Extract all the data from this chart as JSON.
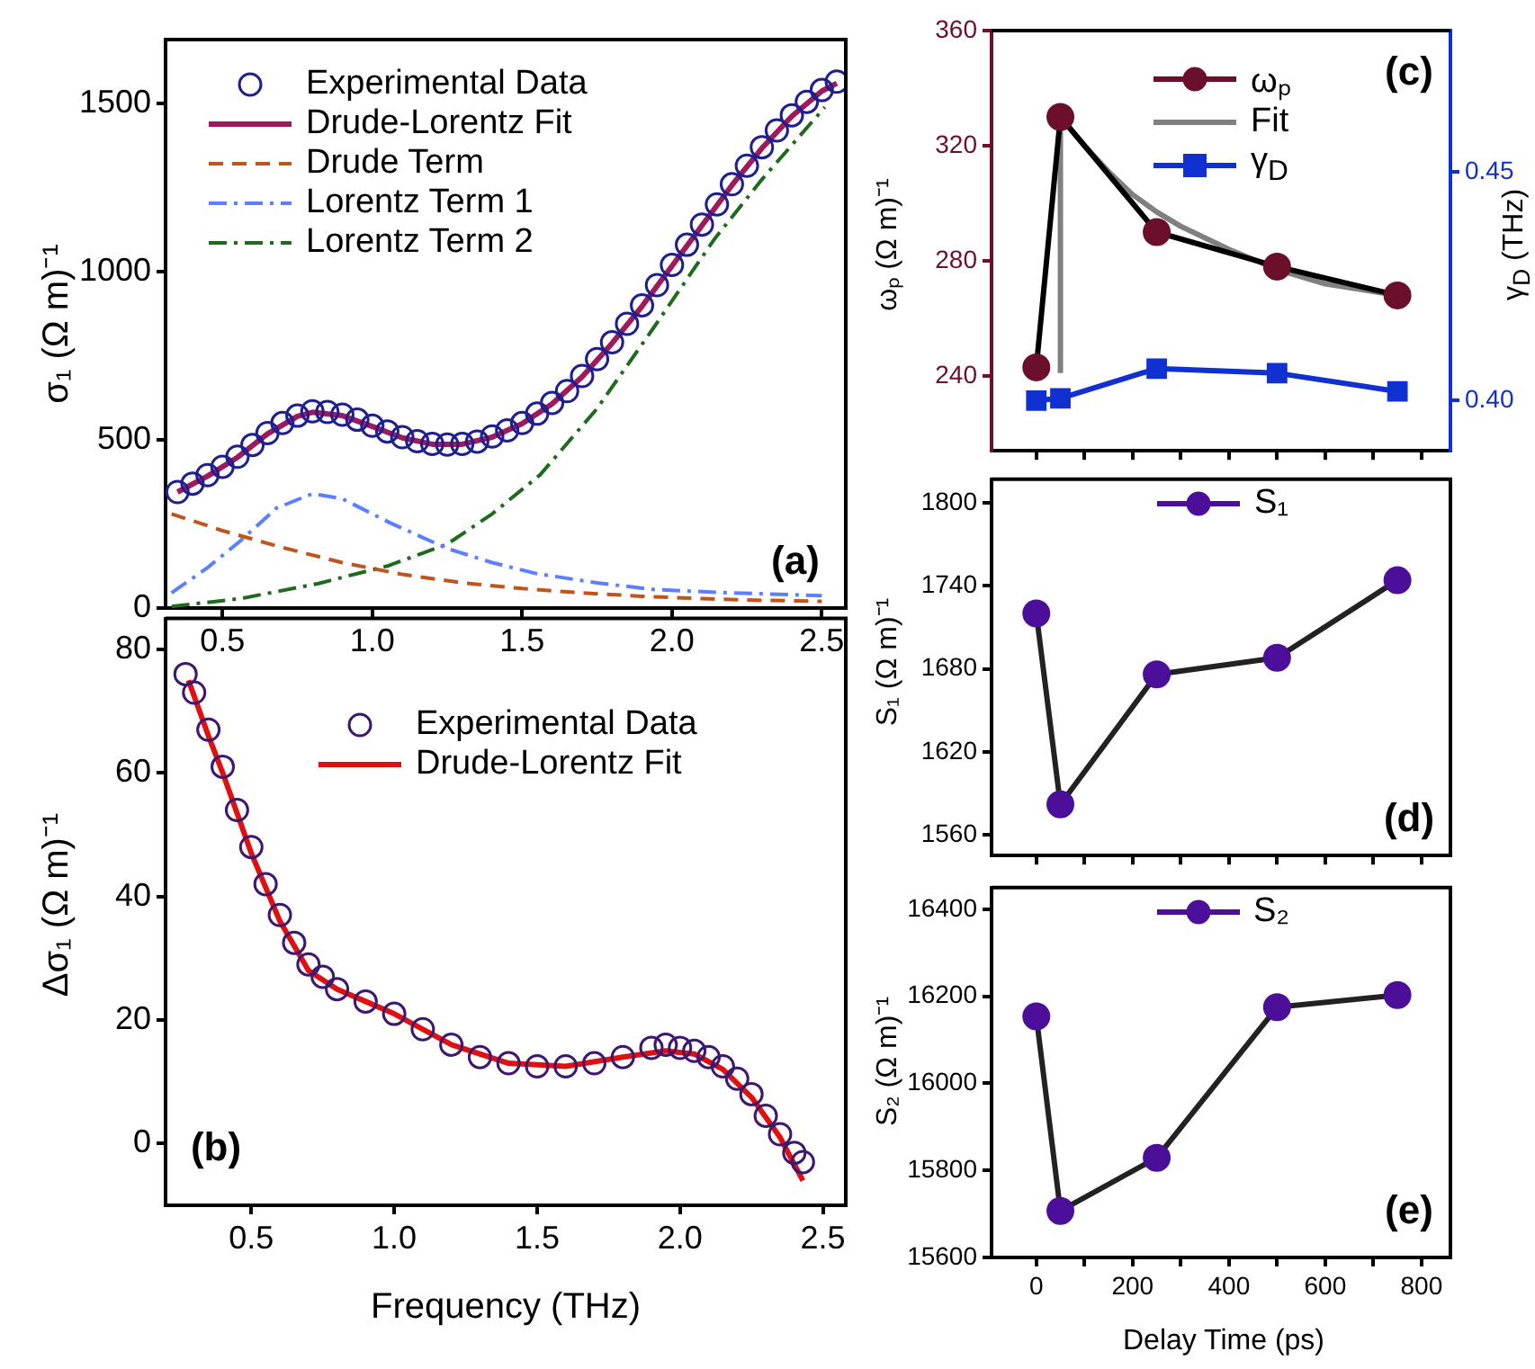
{
  "chart_data": [
    {
      "type": "line",
      "ylabel": "σ₁ (Ω m)⁻¹",
      "xlim": [
        0.31,
        2.58
      ],
      "xticks": [
        {
          "value": 0.5,
          "label": "0.5"
        },
        {
          "value": 1,
          "label": "1.0"
        },
        {
          "value": 1.5,
          "label": "1.5"
        },
        {
          "value": 2,
          "label": "2.0"
        },
        {
          "value": 2.5,
          "label": "2.5"
        }
      ],
      "ylim": [
        0,
        1690
      ],
      "yticks": [
        0,
        500,
        1000,
        1500
      ],
      "grid": false,
      "legend": "top left",
      "annotations": [
        "(a)"
      ],
      "series": [
        {
          "name": "Experimental Data",
          "type": "scatter",
          "marker": "circle",
          "color": "#1f1f8f",
          "x": [
            0.35,
            0.4,
            0.45,
            0.5,
            0.55,
            0.6,
            0.65,
            0.7,
            0.75,
            0.8,
            0.85,
            0.9,
            0.95,
            1.0,
            1.05,
            1.1,
            1.15,
            1.2,
            1.25,
            1.3,
            1.35,
            1.4,
            1.45,
            1.5,
            1.55,
            1.6,
            1.65,
            1.7,
            1.75,
            1.8,
            1.85,
            1.9,
            1.95,
            2.0,
            2.05,
            2.1,
            2.15,
            2.2,
            2.25,
            2.3,
            2.35,
            2.4,
            2.45,
            2.5,
            2.55
          ],
          "values": [
            345,
            370,
            395,
            420,
            450,
            485,
            520,
            550,
            572,
            585,
            583,
            575,
            560,
            542,
            525,
            508,
            496,
            488,
            486,
            488,
            495,
            510,
            528,
            550,
            578,
            610,
            645,
            690,
            740,
            790,
            845,
            900,
            960,
            1020,
            1080,
            1140,
            1200,
            1260,
            1315,
            1370,
            1420,
            1465,
            1505,
            1540,
            1565
          ]
        },
        {
          "name": "Drude-Lorentz Fit",
          "type": "line",
          "line_style": "solid",
          "color": "#a0195a",
          "x": [
            0.35,
            0.45,
            0.55,
            0.65,
            0.75,
            0.8,
            0.9,
            1.0,
            1.1,
            1.2,
            1.3,
            1.4,
            1.5,
            1.6,
            1.7,
            1.8,
            1.9,
            2.0,
            2.1,
            2.2,
            2.3,
            2.4,
            2.5,
            2.55
          ],
          "values": [
            345,
            392,
            448,
            518,
            570,
            582,
            572,
            540,
            506,
            487,
            487,
            508,
            548,
            607,
            687,
            787,
            897,
            1017,
            1137,
            1257,
            1367,
            1462,
            1537,
            1560
          ]
        },
        {
          "name": "Drude Term",
          "type": "line",
          "line_style": "dashed",
          "color": "#c0541a",
          "x": [
            0.33,
            0.5,
            0.7,
            0.9,
            1.1,
            1.3,
            1.5,
            1.7,
            1.9,
            2.1,
            2.3,
            2.5
          ],
          "values": [
            280,
            230,
            180,
            135,
            100,
            75,
            58,
            45,
            35,
            28,
            23,
            20
          ]
        },
        {
          "name": "Lorentz Term 1",
          "type": "line",
          "line_style": "dashdot",
          "color": "#5b7fff",
          "x": [
            0.33,
            0.45,
            0.56,
            0.68,
            0.8,
            0.9,
            1.06,
            1.25,
            1.4,
            1.55,
            1.75,
            1.94,
            2.2,
            2.5
          ],
          "values": [
            45,
            120,
            200,
            297,
            340,
            325,
            253,
            177,
            135,
            102,
            75,
            55,
            45,
            37
          ]
        },
        {
          "name": "Lorentz Term 2",
          "type": "line",
          "line_style": "dashdot",
          "color": "#1e6b1e",
          "x": [
            0.33,
            0.56,
            0.82,
            1.05,
            1.25,
            1.4,
            1.56,
            1.75,
            1.94,
            2.14,
            2.3,
            2.51
          ],
          "values": [
            5,
            28,
            73,
            125,
            190,
            280,
            396,
            593,
            835,
            1095,
            1274,
            1489
          ]
        }
      ]
    },
    {
      "type": "line",
      "xlabel": "Frequency (THz)",
      "ylabel": "Δσ₁ (Ω m)⁻¹",
      "xlim": [
        0.2,
        2.58
      ],
      "xticks": [
        {
          "value": 0.5,
          "label": "0.5"
        },
        {
          "value": 1,
          "label": "1.0"
        },
        {
          "value": 1.5,
          "label": "1.5"
        },
        {
          "value": 2,
          "label": "2.0"
        },
        {
          "value": 2.5,
          "label": "2.5"
        }
      ],
      "ylim": [
        -10,
        85
      ],
      "yticks": [
        0,
        20,
        40,
        60,
        80
      ],
      "grid": false,
      "legend": "top",
      "annotations": [
        "(b)"
      ],
      "series": [
        {
          "name": "Experimental Data",
          "type": "scatter",
          "marker": "circle",
          "color": "#3d1870",
          "x": [
            0.27,
            0.3,
            0.35,
            0.4,
            0.45,
            0.5,
            0.55,
            0.6,
            0.65,
            0.7,
            0.75,
            0.8,
            0.9,
            1.0,
            1.1,
            1.2,
            1.3,
            1.4,
            1.5,
            1.6,
            1.7,
            1.8,
            1.9,
            1.95,
            2.0,
            2.05,
            2.1,
            2.15,
            2.2,
            2.25,
            2.3,
            2.35,
            2.4,
            2.43
          ],
          "values": [
            76,
            73,
            67,
            61,
            54,
            48,
            42,
            37,
            32.5,
            29,
            27,
            25,
            23,
            21,
            18.5,
            16,
            14,
            13,
            12.5,
            12.5,
            13,
            14,
            15.5,
            16,
            15.5,
            15,
            14,
            12.5,
            10.5,
            8,
            4.5,
            1.5,
            -1.5,
            -3
          ]
        },
        {
          "name": "Drude-Lorentz Fit",
          "type": "line",
          "line_style": "solid",
          "color": "#e01010",
          "x": [
            0.28,
            0.35,
            0.4,
            0.5,
            0.6,
            0.7,
            0.8,
            0.9,
            1.0,
            1.2,
            1.4,
            1.6,
            1.8,
            1.95,
            2.05,
            2.15,
            2.25,
            2.35,
            2.43
          ],
          "values": [
            75,
            66,
            60,
            47,
            36,
            28,
            25,
            23,
            21,
            16,
            13,
            12.5,
            14,
            15,
            14.5,
            12,
            7.5,
            1,
            -6
          ]
        }
      ]
    },
    {
      "type": "line",
      "ylabel": "ωₚ (Ω m)⁻¹",
      "y2label": "γ$_{D}$ (THz)",
      "xlim": [
        -93,
        860
      ],
      "xticks": [
        0,
        {
          "value": 100,
          "label": null
        },
        200,
        {
          "value": 300,
          "label": null
        },
        400,
        {
          "value": 500,
          "label": null
        },
        600,
        {
          "value": 700,
          "label": null
        },
        800
      ],
      "ylim": [
        214,
        360
      ],
      "yticks": [
        240,
        280,
        320,
        360
      ],
      "y2lim": [
        0.389,
        0.481
      ],
      "y2ticks": [
        {
          "value": 0.4,
          "label": "0.40"
        },
        0.45
      ],
      "tick_labels": "y",
      "grid": false,
      "legend": "top",
      "annotations": [
        "(c)"
      ],
      "series": [
        {
          "name": "ωₚ",
          "type": "line",
          "marker": "circle",
          "line_style": "solid",
          "color": "#6b0f2a",
          "x": [
            0,
            50,
            250,
            500,
            750
          ],
          "values": [
            243,
            330,
            290,
            278,
            268
          ]
        },
        {
          "name": "Fit",
          "type": "line",
          "line_style": "solid",
          "color": "#808080",
          "x": [
            50,
            50,
            100,
            150,
            200,
            250,
            300,
            400,
            500,
            600,
            750
          ],
          "values": [
            241,
            330,
            320,
            311,
            303,
            297,
            292,
            284,
            277,
            272,
            268
          ]
        },
        {
          "name": "γ$_{D}$",
          "type": "line",
          "marker": "square",
          "line_style": "solid",
          "axis": "y2",
          "color": "#1030d0",
          "x": [
            0,
            50,
            250,
            500,
            750
          ],
          "values": [
            0.4,
            0.4005,
            0.407,
            0.406,
            0.402
          ]
        }
      ]
    },
    {
      "type": "line",
      "ylabel": "S₁ (Ω m)⁻¹",
      "xlim": [
        -93,
        860
      ],
      "xticks": [
        0,
        {
          "value": 100,
          "label": null
        },
        200,
        {
          "value": 300,
          "label": null
        },
        400,
        {
          "value": 500,
          "label": null
        },
        600,
        {
          "value": 700,
          "label": null
        },
        800
      ],
      "ylim": [
        1545,
        1817
      ],
      "yticks": [
        1560,
        1620,
        1680,
        1740,
        1800
      ],
      "tick_labels": "y",
      "grid": false,
      "legend": "top",
      "annotations": [
        "(d)"
      ],
      "series": [
        {
          "name": "S₁",
          "type": "line",
          "marker": "circle",
          "line_style": "solid",
          "color": "#4b0f9a",
          "x": [
            0,
            50,
            250,
            500,
            750
          ],
          "values": [
            1720,
            1582,
            1676,
            1688,
            1744
          ]
        }
      ]
    },
    {
      "type": "line",
      "xlabel": "Delay Time (ps)",
      "ylabel": "S₂ (Ω m)⁻¹",
      "xlim": [
        -93,
        860
      ],
      "xticks": [
        0,
        {
          "value": 100,
          "label": null
        },
        200,
        {
          "value": 300,
          "label": null
        },
        400,
        {
          "value": 500,
          "label": null
        },
        600,
        {
          "value": 700,
          "label": null
        },
        800
      ],
      "ylim": [
        15600,
        16450
      ],
      "yticks": [
        15600,
        15800,
        16000,
        16200,
        16400
      ],
      "grid": false,
      "legend": "top",
      "annotations": [
        "(e)"
      ],
      "series": [
        {
          "name": "S₂",
          "type": "line",
          "marker": "circle",
          "line_style": "solid",
          "color": "#4b0f9a",
          "x": [
            0,
            50,
            250,
            500,
            750
          ],
          "values": [
            16154,
            15707,
            15829,
            16175,
            16203
          ]
        }
      ]
    }
  ]
}
